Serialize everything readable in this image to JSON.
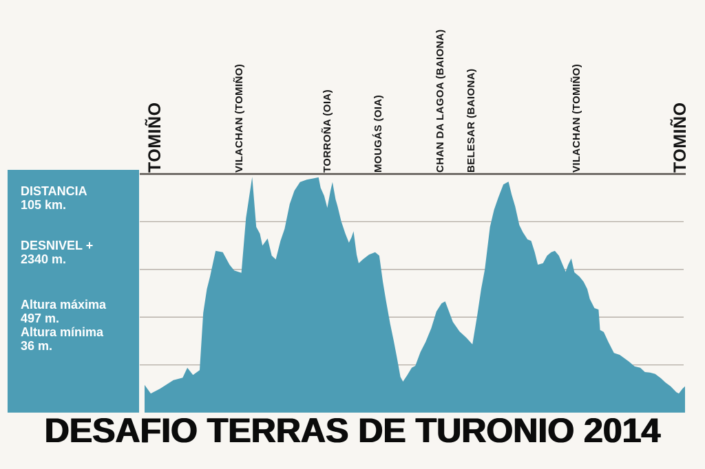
{
  "title": "DESAFIO TERRAS DE TURONIO 2014",
  "infobox": {
    "stats": [
      {
        "label": "DISTANCIA",
        "value": "105 km."
      },
      {
        "label": "DESNIVEL +",
        "value": "2340 m."
      },
      {
        "label": "Altura máxima",
        "value": "497 m."
      },
      {
        "label": "Altura mínima",
        "value": "36 m."
      }
    ]
  },
  "colors": {
    "area": "#4d9db5",
    "infobox_bg": "#4d9db5",
    "background": "#f8f6f2",
    "gridline": "#b2aba3",
    "axis_line": "#55504b",
    "label_text": "#131313",
    "infobox_text": "#ffffff",
    "title_text": "#0b0b0b"
  },
  "chart_data": {
    "type": "area",
    "title": "DESAFIO TERRAS DE TURONIO 2014",
    "xlabel": "",
    "ylabel": "",
    "x_unit": "km",
    "y_unit": "m",
    "xlim": [
      0,
      105
    ],
    "ylim": [
      0,
      500
    ],
    "grid": true,
    "gridlines_m": [
      100,
      200,
      300,
      400
    ],
    "top_line_m": 500,
    "legend": "none",
    "distance_km": 105,
    "total_ascent_m": 2340,
    "max_elevation_m": 497,
    "min_elevation_m": 36,
    "checkpoints": [
      {
        "name": "TOMIÑO",
        "km": 2.0,
        "size": "large"
      },
      {
        "name": "VILACHAN (TOMIÑO)",
        "km": 18.5,
        "size": "small"
      },
      {
        "name": "TORROÑA (OIA)",
        "km": 35.6,
        "size": "small"
      },
      {
        "name": "MOUGÁS (OIA)",
        "km": 45.5,
        "size": "small"
      },
      {
        "name": "CHAN DA LAGOA (BAIONA)",
        "km": 57.5,
        "size": "small"
      },
      {
        "name": "BELESAR (BAIONA)",
        "km": 63.6,
        "size": "small"
      },
      {
        "name": "VILACHAN (TOMIÑO)",
        "km": 84.0,
        "size": "small"
      },
      {
        "name": "TOMIÑO",
        "km": 104.0,
        "size": "large"
      }
    ],
    "profile_km_m": [
      [
        0,
        58
      ],
      [
        1.2,
        40
      ],
      [
        3.0,
        50
      ],
      [
        5.6,
        68
      ],
      [
        7.4,
        73
      ],
      [
        8.3,
        94
      ],
      [
        9.4,
        79
      ],
      [
        10.7,
        89
      ],
      [
        11.4,
        209
      ],
      [
        12.1,
        259
      ],
      [
        12.7,
        284
      ],
      [
        13.8,
        339
      ],
      [
        15.2,
        336
      ],
      [
        16.5,
        310
      ],
      [
        17.4,
        298
      ],
      [
        18.8,
        293
      ],
      [
        19.7,
        408
      ],
      [
        20.9,
        494
      ],
      [
        21.7,
        389
      ],
      [
        22.4,
        375
      ],
      [
        22.9,
        350
      ],
      [
        23.9,
        365
      ],
      [
        24.7,
        329
      ],
      [
        25.5,
        321
      ],
      [
        26.4,
        360
      ],
      [
        27.2,
        385
      ],
      [
        28.2,
        437
      ],
      [
        29.1,
        465
      ],
      [
        30.2,
        483
      ],
      [
        31.5,
        488
      ],
      [
        32.9,
        491
      ],
      [
        33.8,
        493
      ],
      [
        34.2,
        471
      ],
      [
        34.9,
        454
      ],
      [
        35.5,
        429
      ],
      [
        36.1,
        464
      ],
      [
        36.5,
        483
      ],
      [
        37.1,
        447
      ],
      [
        37.5,
        432
      ],
      [
        38.2,
        401
      ],
      [
        39.0,
        375
      ],
      [
        39.7,
        356
      ],
      [
        40.2,
        367
      ],
      [
        40.6,
        380
      ],
      [
        41.2,
        331
      ],
      [
        41.6,
        313
      ],
      [
        42.4,
        321
      ],
      [
        43.6,
        331
      ],
      [
        44.8,
        336
      ],
      [
        45.6,
        329
      ],
      [
        46.3,
        274
      ],
      [
        46.9,
        235
      ],
      [
        47.7,
        187
      ],
      [
        48.4,
        151
      ],
      [
        49.1,
        111
      ],
      [
        49.7,
        75
      ],
      [
        50.2,
        65
      ],
      [
        51.0,
        78
      ],
      [
        51.9,
        94
      ],
      [
        52.6,
        98
      ],
      [
        53.6,
        127
      ],
      [
        54.6,
        148
      ],
      [
        55.7,
        177
      ],
      [
        56.7,
        212
      ],
      [
        57.7,
        229
      ],
      [
        58.4,
        233
      ],
      [
        59.0,
        216
      ],
      [
        59.9,
        190
      ],
      [
        61.2,
        170
      ],
      [
        62.5,
        157
      ],
      [
        63.7,
        143
      ],
      [
        64.6,
        202
      ],
      [
        65.4,
        259
      ],
      [
        66.1,
        300
      ],
      [
        67.1,
        389
      ],
      [
        67.9,
        425
      ],
      [
        68.7,
        450
      ],
      [
        69.7,
        478
      ],
      [
        70.7,
        484
      ],
      [
        71.3,
        457
      ],
      [
        72.0,
        432
      ],
      [
        72.8,
        393
      ],
      [
        73.5,
        378
      ],
      [
        74.4,
        363
      ],
      [
        75.1,
        360
      ],
      [
        75.8,
        336
      ],
      [
        76.4,
        310
      ],
      [
        77.4,
        313
      ],
      [
        78.2,
        329
      ],
      [
        79.0,
        336
      ],
      [
        79.7,
        339
      ],
      [
        80.5,
        329
      ],
      [
        81.1,
        313
      ],
      [
        81.8,
        295
      ],
      [
        82.3,
        310
      ],
      [
        82.9,
        323
      ],
      [
        83.5,
        294
      ],
      [
        84.5,
        285
      ],
      [
        85.3,
        274
      ],
      [
        86.0,
        259
      ],
      [
        86.5,
        238
      ],
      [
        87.4,
        219
      ],
      [
        88.2,
        216
      ],
      [
        88.5,
        173
      ],
      [
        89.2,
        169
      ],
      [
        90.1,
        148
      ],
      [
        91.2,
        125
      ],
      [
        92.3,
        121
      ],
      [
        93.2,
        114
      ],
      [
        94.1,
        107
      ],
      [
        95.2,
        97
      ],
      [
        96.3,
        94
      ],
      [
        97.2,
        85
      ],
      [
        98.2,
        84
      ],
      [
        99.2,
        81
      ],
      [
        100.3,
        72
      ],
      [
        101.2,
        63
      ],
      [
        102.2,
        55
      ],
      [
        103.3,
        43
      ],
      [
        103.8,
        40
      ],
      [
        104.5,
        50
      ],
      [
        105,
        55
      ]
    ]
  }
}
